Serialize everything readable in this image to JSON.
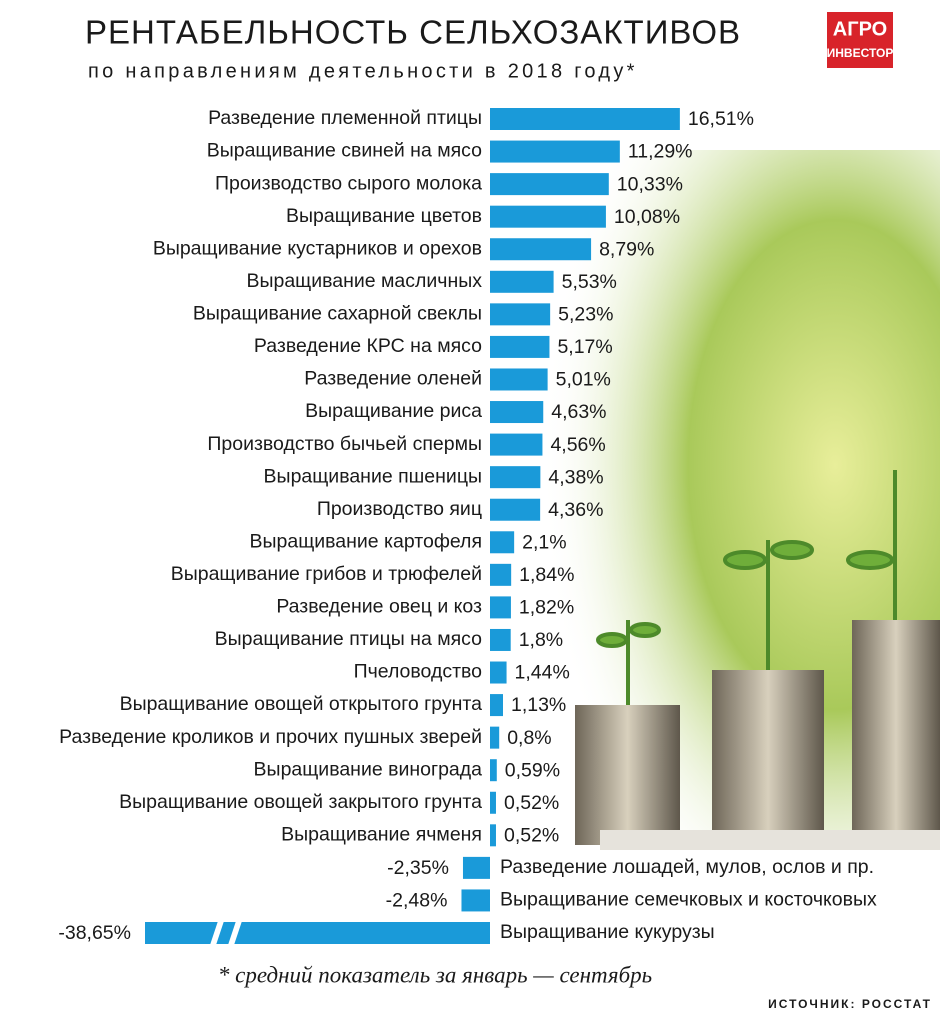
{
  "chart_data": {
    "type": "bar",
    "orientation": "horizontal",
    "title": "РЕНТАБЕЛЬНОСТЬ СЕЛЬХОЗАКТИВОВ",
    "subtitle": "по направлениям деятельности в 2018 году*",
    "footnote": "* средний показатель за январь — сентябрь",
    "source": "ИСТОЧНИК: РОССТАТ",
    "logo": [
      "АГРО",
      "ИНВЕСТОР"
    ],
    "color": "#1a9ad9",
    "categories": [
      "Разведение племенной птицы",
      "Выращивание свиней на мясо",
      "Производство сырого молока",
      "Выращивание цветов",
      "Выращивание кустарников и орехов",
      "Выращивание масличных",
      "Выращивание сахарной свеклы",
      "Разведение КРС на мясо",
      "Разведение оленей",
      "Выращивание риса",
      "Производство бычьей спермы",
      "Выращивание пшеницы",
      "Производство яиц",
      "Выращивание картофеля",
      "Выращивание грибов и трюфелей",
      "Разведение овец и коз",
      "Выращивание птицы на мясо",
      "Пчеловодство",
      "Выращивание овощей открытого грунта",
      "Разведение кроликов и прочих пушных зверей",
      "Выращивание винограда",
      "Выращивание овощей закрытого грунта",
      "Выращивание ячменя",
      "Разведение лошадей, мулов, ослов и пр.",
      "Выращивание семечковых и косточковых",
      "Выращивание кукурузы"
    ],
    "values": [
      16.51,
      11.29,
      10.33,
      10.08,
      8.79,
      5.53,
      5.23,
      5.17,
      5.01,
      4.63,
      4.56,
      4.38,
      4.36,
      2.1,
      1.84,
      1.82,
      1.8,
      1.44,
      1.13,
      0.8,
      0.59,
      0.52,
      0.52,
      -2.35,
      -2.48,
      -38.65
    ],
    "value_labels": [
      "16,51%",
      "11,29%",
      "10,33%",
      "10,08%",
      "8,79%",
      "5,53%",
      "5,23%",
      "5,17%",
      "5,01%",
      "4,63%",
      "4,56%",
      "4,38%",
      "4,36%",
      "2,1%",
      "1,84%",
      "1,82%",
      "1,8%",
      "1,44%",
      "1,13%",
      "0,8%",
      "0,59%",
      "0,52%",
      "0,52%",
      "-2,35%",
      "-2,48%",
      "-38,65%"
    ]
  }
}
